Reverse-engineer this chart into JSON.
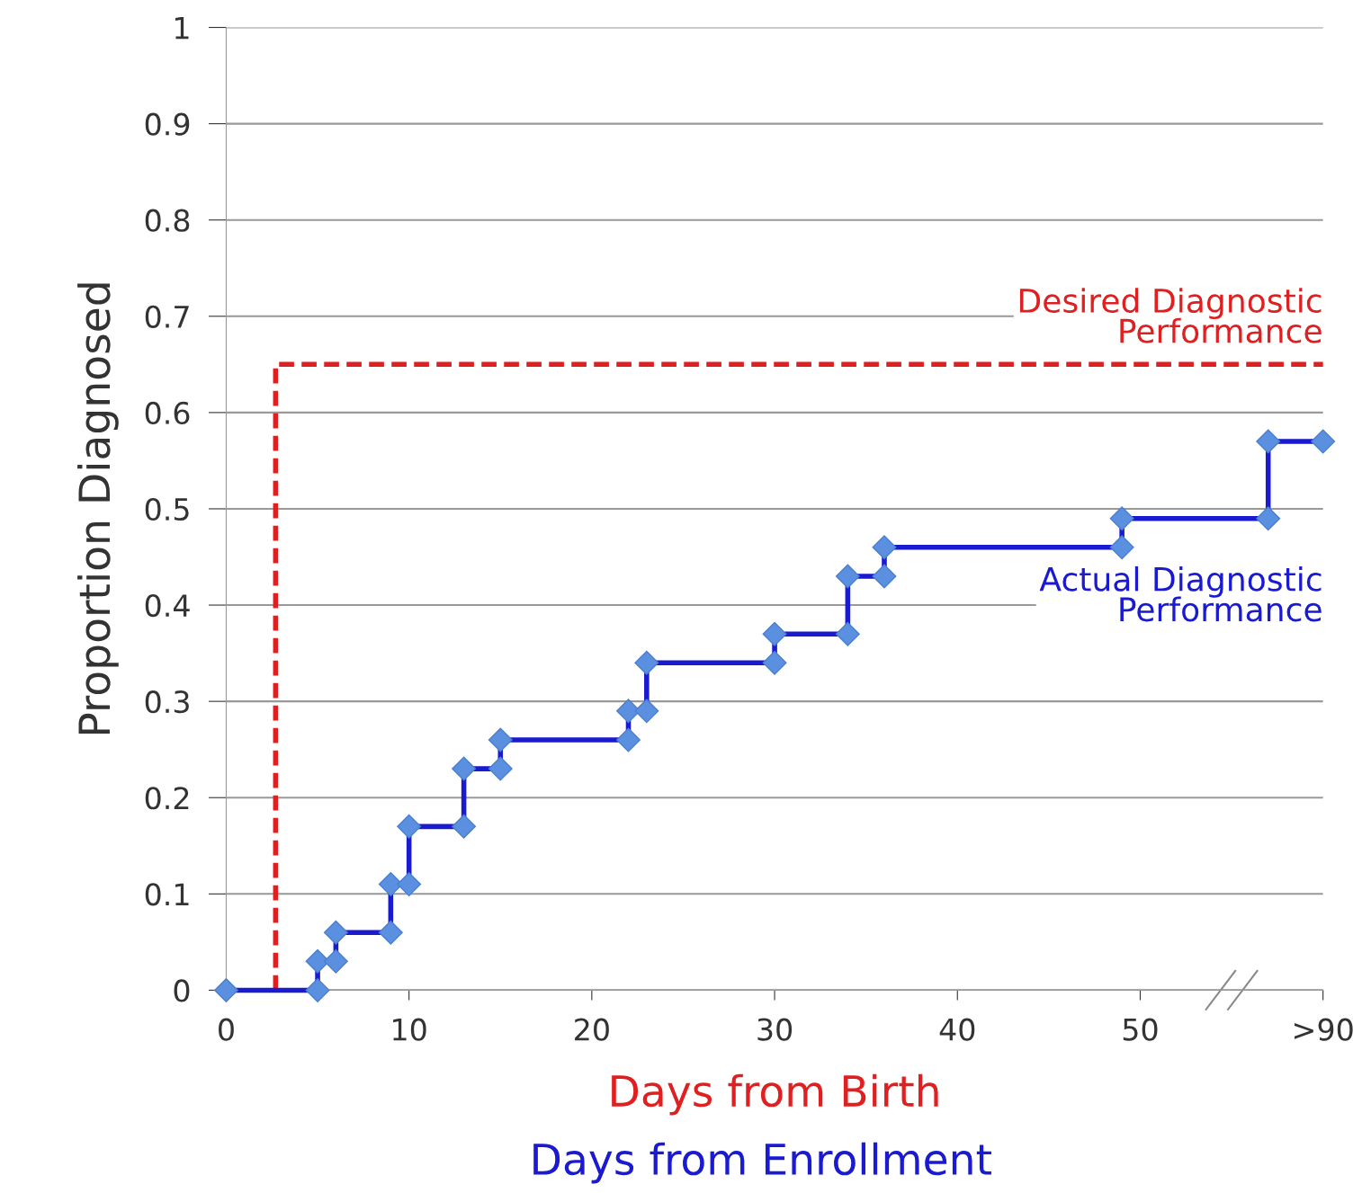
{
  "chart_data": {
    "type": "line",
    "xlabel": "Days from Birth",
    "ylabel": "Proportion Diagnosed",
    "xlim": [
      0,
      60
    ],
    "ylim": [
      0,
      1
    ],
    "xticks": [
      0,
      10,
      20,
      30,
      40,
      50,
      {
        "value": 60,
        "label": ">90"
      }
    ],
    "yticks": [
      0,
      0.1,
      0.2,
      0.3,
      0.4,
      0.5,
      0.6,
      0.7,
      0.8,
      0.9,
      1
    ],
    "grid": "y",
    "series": [
      {
        "name": "Desired Diagnostic\nPerformance",
        "color": "#e02020",
        "line_style": "dashed",
        "marker": "none",
        "x": [
          2.7,
          2.7,
          60
        ],
        "values": [
          0,
          0.65,
          0.65
        ]
      },
      {
        "name": "Actual Diagnostic\nPerformance",
        "color": "#1a1ad0",
        "line_style": "solid",
        "marker": "diamond",
        "x": [
          0,
          5,
          5,
          6,
          6,
          9,
          9,
          10,
          10,
          13,
          13,
          15,
          15,
          22,
          22,
          23,
          23,
          30,
          30,
          34,
          34,
          36,
          36,
          49,
          49,
          57,
          57,
          60
        ],
        "values": [
          0,
          0,
          0.03,
          0.03,
          0.06,
          0.06,
          0.11,
          0.11,
          0.17,
          0.17,
          0.23,
          0.23,
          0.26,
          0.26,
          0.29,
          0.29,
          0.34,
          0.34,
          0.37,
          0.37,
          0.43,
          0.43,
          0.46,
          0.46,
          0.49,
          0.49,
          0.57,
          0.57
        ]
      }
    ],
    "annotations": [
      "Days from Enrollment"
    ]
  }
}
